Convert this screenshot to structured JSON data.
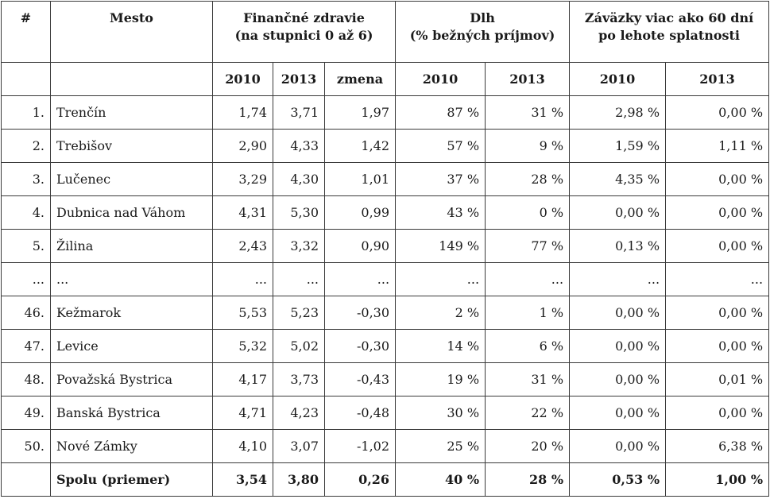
{
  "headers": {
    "num": "#",
    "city": "Mesto",
    "health_line1": "Finančné zdravie",
    "health_line2": "(na stupnici 0 až 6)",
    "debt_line1": "Dlh",
    "debt_line2": "(% bežných príjmov)",
    "arrears_line1": "Záväzky viac ako 60 dní",
    "arrears_line2": "po lehote splatnosti"
  },
  "subheaders": [
    "2010",
    "2013",
    "zmena",
    "2010",
    "2013",
    "2010",
    "2013"
  ],
  "rows": [
    {
      "num": "1.",
      "city": "Trenčín",
      "h2010": "1,74",
      "h2013": "3,71",
      "change": "1,97",
      "d2010": "87 %",
      "d2013": "31 %",
      "a2010": "2,98 %",
      "a2013": "0,00 %"
    },
    {
      "num": "2.",
      "city": "Trebišov",
      "h2010": "2,90",
      "h2013": "4,33",
      "change": "1,42",
      "d2010": "57 %",
      "d2013": "9 %",
      "a2010": "1,59 %",
      "a2013": "1,11 %"
    },
    {
      "num": "3.",
      "city": "Lučenec",
      "h2010": "3,29",
      "h2013": "4,30",
      "change": "1,01",
      "d2010": "37 %",
      "d2013": "28 %",
      "a2010": "4,35 %",
      "a2013": "0,00 %"
    },
    {
      "num": "4.",
      "city": "Dubnica nad Váhom",
      "h2010": "4,31",
      "h2013": "5,30",
      "change": "0,99",
      "d2010": "43 %",
      "d2013": "0 %",
      "a2010": "0,00 %",
      "a2013": "0,00 %"
    },
    {
      "num": "5.",
      "city": "Žilina",
      "h2010": "2,43",
      "h2013": "3,32",
      "change": "0,90",
      "d2010": "149 %",
      "d2013": "77 %",
      "a2010": "0,13 %",
      "a2013": "0,00 %"
    },
    {
      "num": "...",
      "city": "...",
      "h2010": "...",
      "h2013": "...",
      "change": "...",
      "d2010": "...",
      "d2013": "...",
      "a2010": "...",
      "a2013": "..."
    },
    {
      "num": "46.",
      "city": "Kežmarok",
      "h2010": "5,53",
      "h2013": "5,23",
      "change": "-0,30",
      "d2010": "2 %",
      "d2013": "1 %",
      "a2010": "0,00 %",
      "a2013": "0,00 %"
    },
    {
      "num": "47.",
      "city": "Levice",
      "h2010": "5,32",
      "h2013": "5,02",
      "change": "-0,30",
      "d2010": "14 %",
      "d2013": "6 %",
      "a2010": "0,00 %",
      "a2013": "0,00 %"
    },
    {
      "num": "48.",
      "city": "Považská Bystrica",
      "h2010": "4,17",
      "h2013": "3,73",
      "change": "-0,43",
      "d2010": "19 %",
      "d2013": "31 %",
      "a2010": "0,00 %",
      "a2013": "0,01 %"
    },
    {
      "num": "49.",
      "city": "Banská Bystrica",
      "h2010": "4,71",
      "h2013": "4,23",
      "change": "-0,48",
      "d2010": "30 %",
      "d2013": "22 %",
      "a2010": "0,00 %",
      "a2013": "0,00 %"
    },
    {
      "num": "50.",
      "city": "Nové Zámky",
      "h2010": "4,10",
      "h2013": "3,07",
      "change": "-1,02",
      "d2010": "25 %",
      "d2013": "20 %",
      "a2010": "0,00 %",
      "a2013": "6,38 %"
    }
  ],
  "total": {
    "num": "",
    "city": "Spolu (priemer)",
    "h2010": "3,54",
    "h2013": "3,80",
    "change": "0,26",
    "d2010": "40 %",
    "d2013": "28 %",
    "a2010": "0,53 %",
    "a2013": "1,00 %"
  }
}
